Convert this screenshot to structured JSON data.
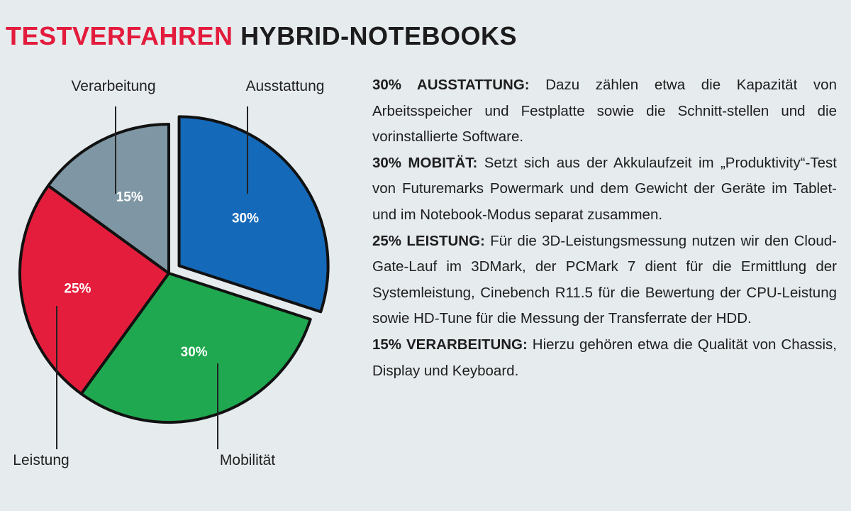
{
  "title": {
    "red": "TESTVERFAHREN",
    "dark": "HYBRID-NOTEBOOKS"
  },
  "colors": {
    "ausstattung": "#1569b9",
    "mobilitaet": "#1fa84f",
    "leistung": "#e51d3c",
    "verarbeitung": "#7f97a4",
    "title_red": "#e31b3c",
    "background": "#e6ebee"
  },
  "chart_data": {
    "type": "pie",
    "title": "",
    "slices": [
      {
        "label": "Ausstattung",
        "value": 30,
        "value_label": "30%",
        "color": "#1569b9",
        "exploded": true
      },
      {
        "label": "Mobilität",
        "value": 30,
        "value_label": "30%",
        "color": "#1fa84f",
        "exploded": false
      },
      {
        "label": "Leistung",
        "value": 25,
        "value_label": "25%",
        "color": "#e51d3c",
        "exploded": false
      },
      {
        "label": "Verarbeitung",
        "value": 15,
        "value_label": "15%",
        "color": "#7f97a4",
        "exploded": false
      }
    ]
  },
  "descriptions": [
    {
      "heading": "30% AUSSTATTUNG:",
      "text": "Dazu zählen etwa die Kapazität von Arbeitsspeicher und Festplatte sowie die Schnitt-stellen und die vorinstallierte Software."
    },
    {
      "heading": "30% MOBITÄT:",
      "text": "Setzt sich aus der Akkulaufzeit im „Produktivity“-Test von Futuremarks Powermark und dem Gewicht der Geräte im Tablet- und im Notebook-Modus separat zusammen."
    },
    {
      "heading": "25% LEISTUNG:",
      "text": "Für die 3D-Leistungsmessung nutzen wir den Cloud-Gate-Lauf im 3DMark, der PCMark 7 dient für die Ermittlung der Systemleistung, Cinebench R11.5 für die Bewertung der CPU-Leistung sowie HD-Tune für die Messung der Transferrate der HDD."
    },
    {
      "heading": "15% VERARBEITUNG:",
      "text": "Hierzu gehören etwa die Qualität von Chassis, Display und Keyboard."
    }
  ]
}
